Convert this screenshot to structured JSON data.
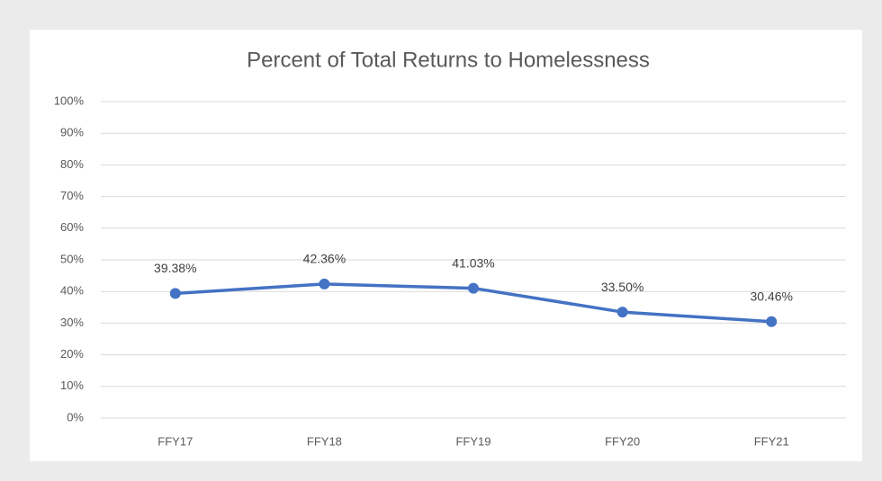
{
  "chart_data": {
    "type": "line",
    "title": "Percent of Total Returns to Homelessness",
    "categories": [
      "FFY17",
      "FFY18",
      "FFY19",
      "FFY20",
      "FFY21"
    ],
    "series": [
      {
        "name": "Percent of Total Returns to Homelessness",
        "color": "#4472c4",
        "values": [
          39.38,
          42.36,
          41.03,
          33.5,
          30.46
        ],
        "value_labels": [
          "39.38%",
          "42.36%",
          "41.03%",
          "33.50%",
          "30.46%"
        ]
      }
    ],
    "ylim": [
      0,
      100
    ],
    "yticks": [
      {
        "value": 0,
        "label": "0%"
      },
      {
        "value": 10,
        "label": "10%"
      },
      {
        "value": 20,
        "label": "20%"
      },
      {
        "value": 30,
        "label": "30%"
      },
      {
        "value": 40,
        "label": "40%"
      },
      {
        "value": 50,
        "label": "50%"
      },
      {
        "value": 60,
        "label": "60%"
      },
      {
        "value": 70,
        "label": "70%"
      },
      {
        "value": 80,
        "label": "80%"
      },
      {
        "value": 90,
        "label": "90%"
      },
      {
        "value": 100,
        "label": "100%"
      }
    ],
    "grid": true
  }
}
